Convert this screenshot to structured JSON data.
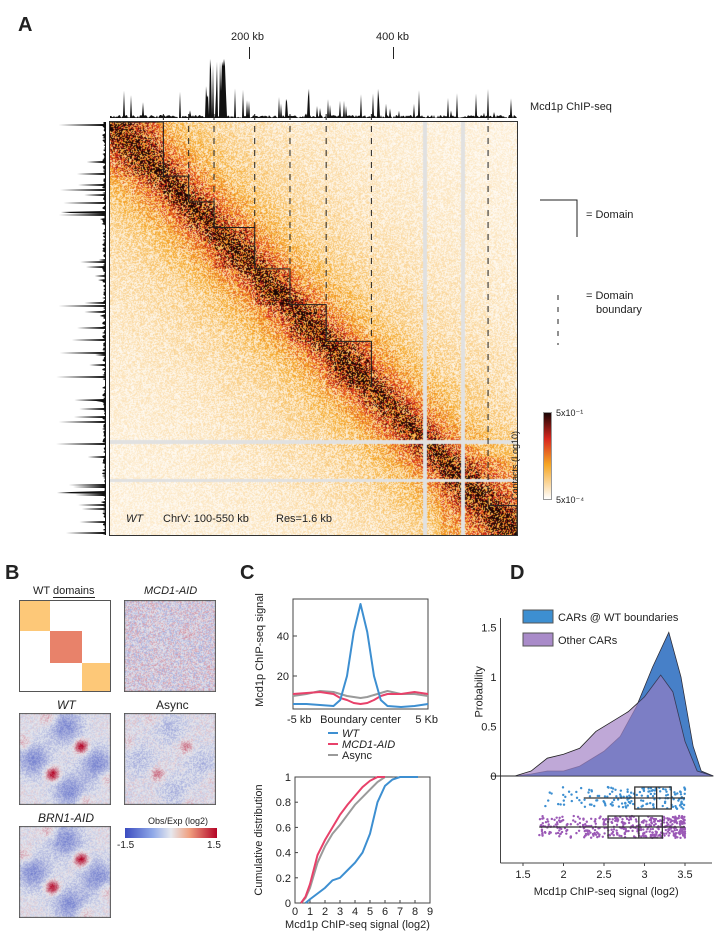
{
  "panel_a": {
    "label": "A",
    "track_title": "Mcd1p ChIP-seq",
    "ticks": [
      "200 kb",
      "400 kb"
    ],
    "annotation_strain": "WT",
    "annotation_region": "ChrV: 100-550 kb",
    "annotation_res": "Res=1.6 kb",
    "legend_domain": "= Domain",
    "legend_boundary_1": "= Domain",
    "legend_boundary_2": "boundary",
    "colorbar_title": "Contacts (Log10)",
    "colorbar_max": "5x10⁻¹",
    "colorbar_min": "5x10⁻⁴",
    "region_kb": [
      100,
      550
    ],
    "domains_kb": [
      [
        100,
        159
      ],
      [
        159,
        187
      ],
      [
        187,
        215
      ],
      [
        215,
        260
      ],
      [
        260,
        299
      ],
      [
        299,
        339
      ],
      [
        339,
        389
      ],
      [
        518,
        550
      ]
    ],
    "boundaries_kb": [
      159,
      187,
      215,
      260,
      299,
      339,
      389,
      518
    ],
    "colors": {
      "low": "#ffffff",
      "mid": "#f5a623",
      "high": "#d7261e",
      "max": "#1a0505"
    }
  },
  "panel_b": {
    "label": "B",
    "titles": {
      "domains_prefix": "WT ",
      "domains_underlined": "domains",
      "mcd1": "MCD1-AID",
      "wt": "WT",
      "async": "Async",
      "brn1": "BRN1-AID"
    },
    "colorbar_title": "Obs/Exp (log2)",
    "colorbar_min": "-1.5",
    "colorbar_max": "1.5",
    "colors": {
      "low": "#3b4cc0",
      "mid": "#e6e8ee",
      "high": "#b40426",
      "domain_outer": "#fdc878",
      "domain_mid": "#e8826a"
    }
  },
  "panel_c": {
    "label": "C"
  },
  "panel_d": {
    "label": "D"
  },
  "chart_data": [
    {
      "type": "line",
      "panel": "C-top",
      "xlabel": "",
      "ylabel": "Mcd1p ChIP-seq signal",
      "x_tick_labels": [
        "-5 kb",
        "Boundary center",
        "5 Kb"
      ],
      "y_ticks": [
        20,
        40
      ],
      "xlim": [
        -5,
        5
      ],
      "ylim": [
        3.5,
        58.5
      ],
      "x": [
        -5,
        -4,
        -3,
        -2,
        -1.5,
        -1,
        -0.5,
        0,
        0.5,
        1,
        1.5,
        2,
        3,
        4,
        5
      ],
      "series": [
        {
          "name": "WT",
          "color": "#3d8fd1",
          "values": [
            6,
            6,
            5.5,
            5,
            8,
            20,
            42,
            56,
            42,
            20,
            8,
            5,
            4.5,
            5,
            6
          ]
        },
        {
          "name": "MCD1-AID",
          "color": "#e8416a",
          "values": [
            11,
            11.5,
            12,
            11,
            9,
            8,
            6.5,
            6,
            6.5,
            8,
            10,
            11,
            11,
            12,
            11
          ]
        },
        {
          "name": "Async",
          "color": "#9a9a9a",
          "values": [
            10,
            11,
            12.5,
            12,
            11,
            10,
            9.5,
            9,
            9.5,
            10.5,
            11.5,
            12.5,
            11,
            11,
            10
          ]
        }
      ],
      "legend": "between-panels"
    },
    {
      "type": "line",
      "panel": "C-bottom",
      "xlabel": "Mcd1p ChIP-seq signal (log2)",
      "ylabel": "Cumulative distribution",
      "x_ticks": [
        0,
        1,
        2,
        3,
        4,
        5,
        6,
        7,
        8,
        9
      ],
      "y_ticks": [
        0,
        0.2,
        0.4,
        0.6,
        0.8,
        1
      ],
      "xlim": [
        0,
        9
      ],
      "ylim": [
        0,
        1
      ],
      "series": [
        {
          "name": "WT",
          "color": "#3d8fd1",
          "points": [
            [
              0.7,
              0
            ],
            [
              1,
              0.03
            ],
            [
              2,
              0.12
            ],
            [
              2.5,
              0.18
            ],
            [
              3,
              0.2
            ],
            [
              3.5,
              0.26
            ],
            [
              4,
              0.32
            ],
            [
              4.5,
              0.4
            ],
            [
              5,
              0.55
            ],
            [
              5.5,
              0.8
            ],
            [
              6,
              0.93
            ],
            [
              6.5,
              0.98
            ],
            [
              7,
              1
            ],
            [
              8.2,
              1
            ]
          ]
        },
        {
          "name": "MCD1-AID",
          "color": "#e8416a",
          "points": [
            [
              0.4,
              0
            ],
            [
              0.7,
              0.05
            ],
            [
              1,
              0.15
            ],
            [
              1.5,
              0.38
            ],
            [
              2,
              0.5
            ],
            [
              2.5,
              0.6
            ],
            [
              3,
              0.7
            ],
            [
              3.5,
              0.78
            ],
            [
              4,
              0.85
            ],
            [
              4.5,
              0.92
            ],
            [
              5,
              0.97
            ],
            [
              5.5,
              1
            ],
            [
              6,
              1
            ]
          ]
        },
        {
          "name": "Async",
          "color": "#9a9a9a",
          "points": [
            [
              0.4,
              0
            ],
            [
              0.7,
              0.04
            ],
            [
              1,
              0.12
            ],
            [
              1.5,
              0.32
            ],
            [
              2,
              0.45
            ],
            [
              2.5,
              0.55
            ],
            [
              3,
              0.62
            ],
            [
              3.5,
              0.7
            ],
            [
              4,
              0.78
            ],
            [
              4.5,
              0.84
            ],
            [
              5,
              0.9
            ],
            [
              5.5,
              0.96
            ],
            [
              6,
              1
            ],
            [
              6.5,
              1
            ]
          ]
        }
      ]
    },
    {
      "type": "area",
      "panel": "D",
      "xlabel": "Mcd1p ChIP-seq signal (log2)",
      "ylabel": "Probability",
      "x_ticks": [
        1.5,
        2,
        2.5,
        3,
        3.5
      ],
      "y_ticks": [
        0,
        0.5,
        1,
        1.5
      ],
      "xlim": [
        1.1,
        3.85
      ],
      "ylim": [
        0,
        1.6
      ],
      "legend": "top-left",
      "series": [
        {
          "name": "CARs @ WT boundaries",
          "color": "#3d8fd1",
          "points": [
            [
              1.1,
              0
            ],
            [
              1.4,
              0
            ],
            [
              1.6,
              0.02
            ],
            [
              1.8,
              0.05
            ],
            [
              2,
              0.05
            ],
            [
              2.2,
              0.1
            ],
            [
              2.5,
              0.25
            ],
            [
              2.7,
              0.4
            ],
            [
              2.9,
              0.7
            ],
            [
              3.1,
              1.1
            ],
            [
              3.3,
              1.45
            ],
            [
              3.45,
              1.0
            ],
            [
              3.6,
              0.3
            ],
            [
              3.7,
              0.05
            ],
            [
              3.85,
              0
            ]
          ],
          "box": {
            "whisker_low": 2.25,
            "q1": 2.88,
            "median": 3.15,
            "q3": 3.33,
            "whisker_high": 3.5
          }
        },
        {
          "name": "Other CARs",
          "color": "#a98bc9",
          "points": [
            [
              1.1,
              0
            ],
            [
              1.4,
              0
            ],
            [
              1.6,
              0.05
            ],
            [
              1.8,
              0.18
            ],
            [
              2,
              0.22
            ],
            [
              2.2,
              0.28
            ],
            [
              2.4,
              0.45
            ],
            [
              2.6,
              0.55
            ],
            [
              2.8,
              0.65
            ],
            [
              3.0,
              0.8
            ],
            [
              3.2,
              1.02
            ],
            [
              3.35,
              0.85
            ],
            [
              3.5,
              0.35
            ],
            [
              3.65,
              0.05
            ],
            [
              3.85,
              0
            ]
          ],
          "box": {
            "whisker_low": 1.7,
            "q1": 2.55,
            "median": 2.93,
            "q3": 3.22,
            "whisker_high": 3.5
          }
        }
      ]
    }
  ]
}
